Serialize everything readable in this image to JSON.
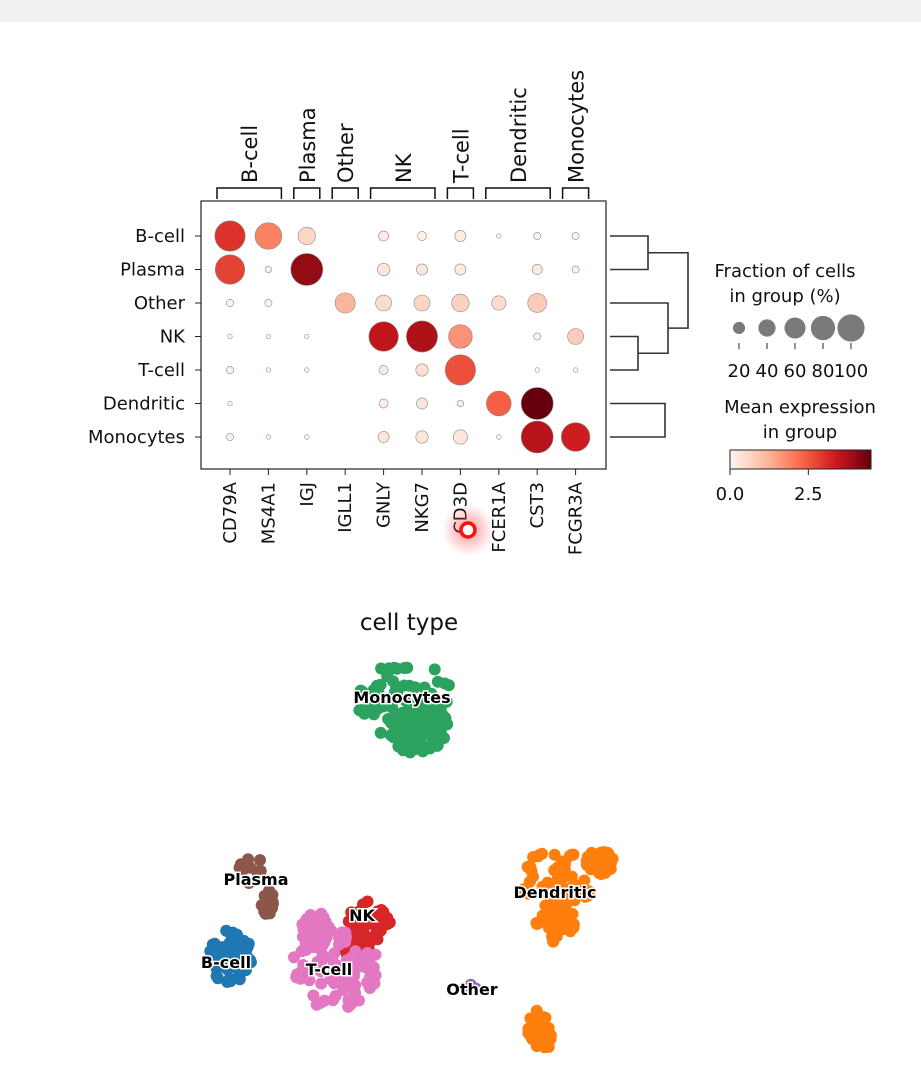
{
  "chart_data": [
    {
      "type": "dotplot",
      "groups": [
        "B-cell",
        "Plasma",
        "Other",
        "NK",
        "T-cell",
        "Dendritic",
        "Monocytes"
      ],
      "genes": [
        "CD79A",
        "MS4A1",
        "IGJ",
        "IGLL1",
        "GNLY",
        "NKG7",
        "CD3D",
        "FCER1A",
        "CST3",
        "FCGR3A"
      ],
      "gene_groups": [
        {
          "label": "B-cell",
          "from": 0,
          "to": 1
        },
        {
          "label": "Plasma",
          "from": 2,
          "to": 2
        },
        {
          "label": "Other",
          "from": 3,
          "to": 3
        },
        {
          "label": "NK",
          "from": 4,
          "to": 5
        },
        {
          "label": "T-cell",
          "from": 6,
          "to": 6
        },
        {
          "label": "Dendritic",
          "from": 7,
          "to": 8
        },
        {
          "label": "Monocytes",
          "from": 9,
          "to": 9
        }
      ],
      "fraction_pct": [
        [
          90,
          70,
          30,
          0,
          10,
          8,
          12,
          2,
          5,
          5
        ],
        [
          85,
          4,
          100,
          0,
          15,
          12,
          12,
          0,
          10,
          5
        ],
        [
          5,
          5,
          0,
          40,
          25,
          25,
          30,
          20,
          35,
          0
        ],
        [
          2,
          2,
          2,
          0,
          85,
          95,
          55,
          0,
          5,
          25
        ],
        [
          5,
          2,
          2,
          0,
          8,
          15,
          90,
          0,
          2,
          2
        ],
        [
          2,
          0,
          0,
          0,
          8,
          12,
          4,
          60,
          100,
          0
        ],
        [
          5,
          2,
          2,
          0,
          12,
          15,
          20,
          2,
          100,
          80
        ]
      ],
      "mean_expression": [
        [
          3.0,
          1.9,
          0.6,
          0.0,
          0.2,
          0.1,
          0.2,
          0.0,
          0.1,
          0.1
        ],
        [
          2.8,
          0.1,
          4.0,
          0.0,
          0.3,
          0.3,
          0.2,
          0.0,
          0.2,
          0.1
        ],
        [
          0.1,
          0.1,
          0.0,
          1.2,
          0.5,
          0.6,
          0.7,
          0.5,
          0.8,
          0.0
        ],
        [
          0.0,
          0.0,
          0.0,
          0.0,
          3.5,
          3.7,
          1.7,
          0.0,
          0.1,
          0.8
        ],
        [
          0.1,
          0.0,
          0.0,
          0.0,
          0.2,
          0.4,
          2.6,
          0.0,
          0.0,
          0.0
        ],
        [
          0.0,
          0.0,
          0.0,
          0.0,
          0.2,
          0.3,
          0.1,
          2.4,
          4.5,
          0.0
        ],
        [
          0.1,
          0.0,
          0.0,
          0.0,
          0.3,
          0.3,
          0.3,
          0.0,
          3.6,
          3.3
        ]
      ],
      "size_legend": {
        "title_lines": [
          "Fraction of cells",
          "in group (%)"
        ],
        "values": [
          20,
          40,
          60,
          80,
          100
        ],
        "tick_labels": [
          "20",
          "40",
          "60",
          "80",
          "100"
        ]
      },
      "color_legend": {
        "title_lines": [
          "Mean expression",
          "in group"
        ],
        "colormap": "Reds",
        "range": [
          0,
          4.5
        ],
        "ticks": [
          0,
          2.5
        ],
        "tick_labels": [
          "0.0",
          "2.5"
        ]
      },
      "dendrogram": true
    },
    {
      "type": "scatter",
      "title": "cell type",
      "labels": [
        {
          "name": "Monocytes",
          "color": "#2ca25f"
        },
        {
          "name": "Plasma",
          "color": "#8c564b"
        },
        {
          "name": "NK",
          "color": "#d62728"
        },
        {
          "name": "Dendritic",
          "color": "#ff7f0e"
        },
        {
          "name": "B-cell",
          "color": "#1f77b4"
        },
        {
          "name": "T-cell",
          "color": "#e377c2"
        },
        {
          "name": "Other",
          "color": "#9467bd"
        }
      ]
    }
  ],
  "cursor": {
    "color": "#ff0000"
  }
}
